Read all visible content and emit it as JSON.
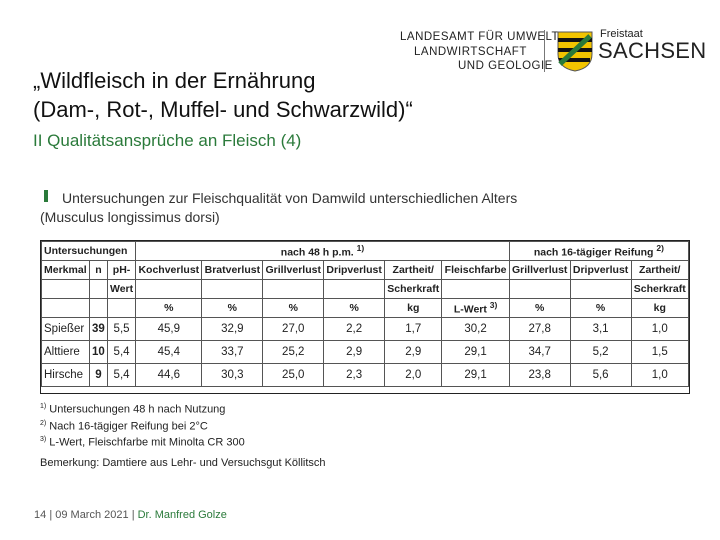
{
  "header": {
    "title_line1": "„Wildfleisch in der Ernährung",
    "title_line2": "(Dam-, Rot-, Muffel- und Schwarzwild)“",
    "subtitle": "II Qualitätsansprüche an Fleisch (4)"
  },
  "logo": {
    "line1": "LANDESAMT FÜR UMWELT,",
    "line2": "LANDWIRTSCHAFT",
    "line3": "UND GEOLOGIE",
    "freistaat": "Freistaat",
    "sachsen": "SACHSEN",
    "colors": {
      "green": "#2a7a3a",
      "yellow": "#f2c400"
    }
  },
  "intro": {
    "line1": "Untersuchungen zur Fleischqualität von Damwild unterschiedlichen Alters",
    "line2": "(Musculus longissimus dorsi)"
  },
  "table": {
    "group_header_1": "Untersuchungen",
    "group_header_2": "nach 48 h p.m.",
    "group_header_2_sup": "1)",
    "group_header_3": "nach 16-tägiger Reifung",
    "group_header_3_sup": "2)",
    "columns": [
      "Merkmal",
      "n",
      "pH-",
      "Kochverlust",
      "Bratverlust",
      "Grillverlust",
      "Dripverlust",
      "Zartheit/",
      "Fleischfarbe",
      "Grillverlust",
      "Dripverlust",
      "Zartheit/"
    ],
    "columns_row2": [
      "",
      "",
      "Wert",
      "",
      "",
      "",
      "",
      "Scherkraft",
      "",
      "",
      "",
      "Scherkraft"
    ],
    "units": [
      "",
      "",
      "",
      "%",
      "%",
      "%",
      "%",
      "kg",
      "L-Wert",
      "%",
      "%",
      "kg"
    ],
    "lwert_sup": "3)",
    "rows": [
      {
        "label": "Spießer",
        "n": "39",
        "values": [
          "5,5",
          "45,9",
          "32,9",
          "27,0",
          "2,2",
          "1,7",
          "30,2",
          "27,8",
          "3,1",
          "1,0"
        ]
      },
      {
        "label": "Alttiere",
        "n": "10",
        "values": [
          "5,4",
          "45,4",
          "33,7",
          "25,2",
          "2,9",
          "2,9",
          "29,1",
          "34,7",
          "5,2",
          "1,5"
        ]
      },
      {
        "label": "Hirsche",
        "n": "9",
        "values": [
          "5,4",
          "44,6",
          "30,3",
          "25,0",
          "2,3",
          "2,0",
          "29,1",
          "23,8",
          "5,6",
          "1,0"
        ]
      }
    ]
  },
  "footnotes": {
    "f1_mark": "1)",
    "f1": "Untersuchungen 48 h nach Nutzung",
    "f2_mark": "2)",
    "f2": "Nach 16-tägiger Reifung bei 2°C",
    "f3_mark": "3)",
    "f3": "L-Wert, Fleischfarbe mit Minolta CR 300"
  },
  "note": "Bemerkung: Damtiere aus Lehr- und Versuchsgut Köllitsch",
  "footer": {
    "page": "14",
    "date": "09 March 2021",
    "author": "Dr. Manfred Golze",
    "sep": "|"
  }
}
